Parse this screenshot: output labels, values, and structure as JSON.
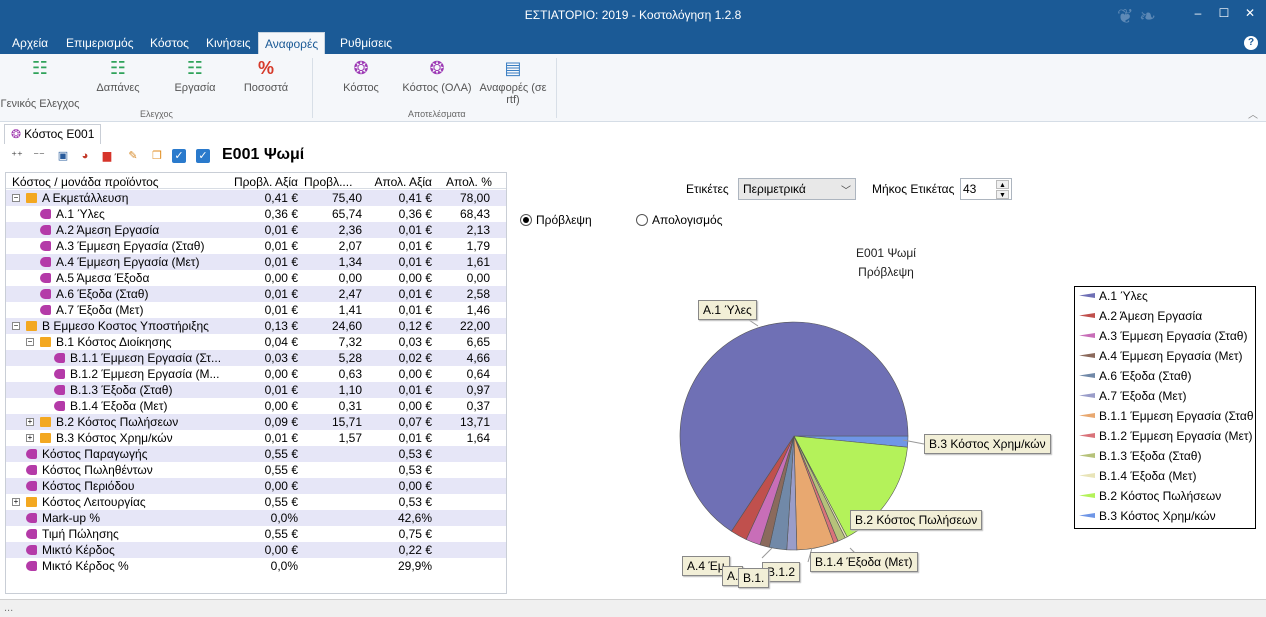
{
  "window": {
    "title": "ΕΣΤΙΑΤΟΡΙΟ: 2019 - Κοστολόγηση 1.2.8"
  },
  "menu": {
    "tabs": [
      "Αρχεία",
      "Επιμερισμός",
      "Κόστος",
      "Κινήσεις",
      "Αναφορές",
      "Ρυθμίσεις"
    ],
    "active": "Αναφορές"
  },
  "ribbon": {
    "controls": [
      "Γενικός Ελεγχος",
      "Δαπάνες",
      "Εργασία",
      "Ποσοστά"
    ],
    "results": [
      "Κόστος",
      "Κόστος (ΟΛΑ)",
      "Αναφορές (σε",
      "rtf)"
    ],
    "group_controls": "Ελεγχος",
    "group_results": "Αποτελέσματα"
  },
  "doctab": {
    "label": "Κόστος  Ε001"
  },
  "heading": "Ε001 Ψωμί",
  "grid": {
    "headers": [
      "Κόστος / μονάδα προϊόντος",
      "Προβλ. Αξία",
      "Προβλ....",
      "Απολ. Αξία",
      "Απολ. %"
    ],
    "rows": [
      {
        "lvl": 0,
        "exp": "−",
        "icon": "folder",
        "name": "Α Εκμετάλλευση",
        "pv": "0,41 €",
        "pp": "75,40",
        "av": "0,41 €",
        "ap": "78,00"
      },
      {
        "lvl": 1,
        "exp": "",
        "icon": "cost",
        "name": "Α.1 Ύλες",
        "pv": "0,36 €",
        "pp": "65,74",
        "av": "0,36 €",
        "ap": "68,43"
      },
      {
        "lvl": 1,
        "exp": "",
        "icon": "cost",
        "name": "Α.2 Άμεση Εργασία",
        "pv": "0,01 €",
        "pp": "2,36",
        "av": "0,01 €",
        "ap": "2,13"
      },
      {
        "lvl": 1,
        "exp": "",
        "icon": "cost",
        "name": "Α.3 Έμμεση Εργασία (Σταθ)",
        "pv": "0,01 €",
        "pp": "2,07",
        "av": "0,01 €",
        "ap": "1,79"
      },
      {
        "lvl": 1,
        "exp": "",
        "icon": "cost",
        "name": "Α.4 Έμμεση Εργασία (Μετ)",
        "pv": "0,01 €",
        "pp": "1,34",
        "av": "0,01 €",
        "ap": "1,61"
      },
      {
        "lvl": 1,
        "exp": "",
        "icon": "cost",
        "name": "Α.5 Άμεσα Έξοδα",
        "pv": "0,00 €",
        "pp": "0,00",
        "av": "0,00 €",
        "ap": "0,00"
      },
      {
        "lvl": 1,
        "exp": "",
        "icon": "cost",
        "name": "Α.6 Έξοδα (Σταθ)",
        "pv": "0,01 €",
        "pp": "2,47",
        "av": "0,01 €",
        "ap": "2,58"
      },
      {
        "lvl": 1,
        "exp": "",
        "icon": "cost",
        "name": "Α.7 Έξοδα (Μετ)",
        "pv": "0,01 €",
        "pp": "1,41",
        "av": "0,01 €",
        "ap": "1,46"
      },
      {
        "lvl": 0,
        "exp": "−",
        "icon": "folder",
        "name": "Β Εμμεσο Κοστος Υποστήριξης",
        "pv": "0,13 €",
        "pp": "24,60",
        "av": "0,12 €",
        "ap": "22,00"
      },
      {
        "lvl": 1,
        "exp": "−",
        "icon": "folder",
        "name": "Β.1 Κόστος Διοίκησης",
        "pv": "0,04 €",
        "pp": "7,32",
        "av": "0,03 €",
        "ap": "6,65"
      },
      {
        "lvl": 2,
        "exp": "",
        "icon": "cost",
        "name": "Β.1.1 Έμμεση Εργασία (Στ...",
        "pv": "0,03 €",
        "pp": "5,28",
        "av": "0,02 €",
        "ap": "4,66"
      },
      {
        "lvl": 2,
        "exp": "",
        "icon": "cost",
        "name": "Β.1.2 Έμμεση Εργασία (Μ...",
        "pv": "0,00 €",
        "pp": "0,63",
        "av": "0,00 €",
        "ap": "0,64"
      },
      {
        "lvl": 2,
        "exp": "",
        "icon": "cost",
        "name": "Β.1.3 Έξοδα (Σταθ)",
        "pv": "0,01 €",
        "pp": "1,10",
        "av": "0,01 €",
        "ap": "0,97"
      },
      {
        "lvl": 2,
        "exp": "",
        "icon": "cost",
        "name": "Β.1.4 Έξοδα (Μετ)",
        "pv": "0,00 €",
        "pp": "0,31",
        "av": "0,00 €",
        "ap": "0,37"
      },
      {
        "lvl": 1,
        "exp": "+",
        "icon": "folder",
        "name": "Β.2 Κόστος Πωλήσεων",
        "pv": "0,09 €",
        "pp": "15,71",
        "av": "0,07 €",
        "ap": "13,71"
      },
      {
        "lvl": 1,
        "exp": "+",
        "icon": "folder",
        "name": "Β.3 Κόστος Χρημ/κών",
        "pv": "0,01 €",
        "pp": "1,57",
        "av": "0,01 €",
        "ap": "1,64"
      },
      {
        "lvl": 0,
        "exp": "",
        "icon": "cost",
        "name": "Κόστος Παραγωγής",
        "pv": "0,55 €",
        "pp": "",
        "av": "0,53 €",
        "ap": ""
      },
      {
        "lvl": 0,
        "exp": "",
        "icon": "cost",
        "name": "Κόστος Πωληθέντων",
        "pv": "0,55 €",
        "pp": "",
        "av": "0,53 €",
        "ap": ""
      },
      {
        "lvl": 0,
        "exp": "",
        "icon": "cost",
        "name": "Κόστος Περιόδου",
        "pv": "0,00 €",
        "pp": "",
        "av": "0,00 €",
        "ap": ""
      },
      {
        "lvl": 0,
        "exp": "+",
        "icon": "folder",
        "name": "Κόστος Λειτουργίας",
        "pv": "0,55 €",
        "pp": "",
        "av": "0,53 €",
        "ap": ""
      },
      {
        "lvl": 0,
        "exp": "",
        "icon": "cost",
        "name": "Mark-up %",
        "pv": "0,0%",
        "pp": "",
        "av": "42,6%",
        "ap": ""
      },
      {
        "lvl": 0,
        "exp": "",
        "icon": "cost",
        "name": "Τιμή Πώλησης",
        "pv": "0,55 €",
        "pp": "",
        "av": "0,75 €",
        "ap": ""
      },
      {
        "lvl": 0,
        "exp": "",
        "icon": "cost",
        "name": "Μικτό Κέρδος",
        "pv": "0,00 €",
        "pp": "",
        "av": "0,22 €",
        "ap": ""
      },
      {
        "lvl": 0,
        "exp": "",
        "icon": "cost",
        "name": "Μικτό Κέρδος %",
        "pv": "0,0%",
        "pp": "",
        "av": "29,9%",
        "ap": ""
      }
    ]
  },
  "controls": {
    "labels_caption": "Ετικέτες",
    "labels_value": "Περιμετρικά",
    "length_caption": "Μήκος Ετικέτας",
    "length_value": "43",
    "radio_forecast": "Πρόβλεψη",
    "radio_actual": "Απολογισμός",
    "selected": "forecast"
  },
  "chart_data": {
    "type": "pie",
    "title": "Ε001 Ψωμί",
    "subtitle": "Πρόβλεψη",
    "legend_position": "right",
    "slices": [
      {
        "name": "Α.1 Ύλες",
        "value": 65.74,
        "color": "#6f70b5"
      },
      {
        "name": "Α.2 Άμεση Εργασία",
        "value": 2.36,
        "color": "#c0504d"
      },
      {
        "name": "Α.3 Έμμεση Εργασία (Σταθ)",
        "value": 2.07,
        "color": "#c86eb8"
      },
      {
        "name": "Α.4 Έμμεση Εργασία (Μετ)",
        "value": 1.34,
        "color": "#8b6a5c"
      },
      {
        "name": "Α.6 Έξοδα (Σταθ)",
        "value": 2.47,
        "color": "#7189a8"
      },
      {
        "name": "Α.7 Έξοδα (Μετ)",
        "value": 1.41,
        "color": "#9a9dc9"
      },
      {
        "name": "Β.1.1 Έμμεση Εργασία (Σταθ",
        "value": 5.28,
        "color": "#e8a870"
      },
      {
        "name": "Β.1.2 Έμμεση Εργασία (Μετ)",
        "value": 0.63,
        "color": "#d9737a"
      },
      {
        "name": "Β.1.3 Έξοδα (Σταθ)",
        "value": 1.1,
        "color": "#b6c27a"
      },
      {
        "name": "Β.1.4 Έξοδα (Μετ)",
        "value": 0.31,
        "color": "#e8e4b8"
      },
      {
        "name": "Β.2 Κόστος Πωλήσεων",
        "value": 15.71,
        "color": "#b4f25a"
      },
      {
        "name": "Β.3 Κόστος Χρημ/κών",
        "value": 1.57,
        "color": "#6f96e6"
      }
    ],
    "callouts": [
      "Α.1 Ύλες",
      "Β.3 Κόστος Χρημ/κών",
      "Β.2 Κόστος Πωλήσεων",
      "Β.1.4 Έξοδα (Μετ)",
      "Α.4 Έμ",
      "Β.1.2",
      "Α.",
      "Β.1."
    ]
  },
  "status": {
    "text": "..."
  }
}
